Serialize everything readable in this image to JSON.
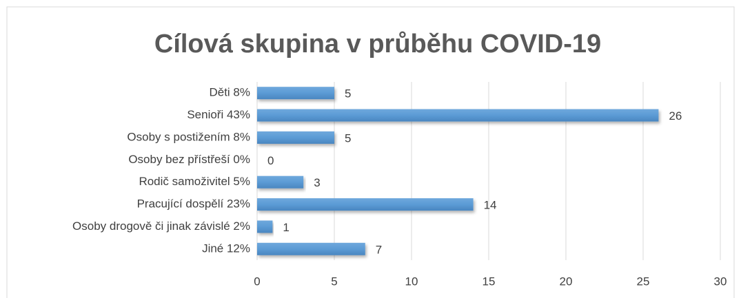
{
  "chart_data": {
    "type": "bar",
    "orientation": "horizontal",
    "title": "Cílová skupina v průběhu COVID-19",
    "categories": [
      "Děti 8%",
      "Senioři 43%",
      "Osoby s postižením 8%",
      "Osoby bez přístřeší 0%",
      "Rodič samoživitel 5%",
      "Pracující dospělí 23%",
      "Osoby drogově či jinak závislé 2%",
      "Jiné 12%"
    ],
    "values": [
      5,
      26,
      5,
      0,
      3,
      14,
      1,
      7
    ],
    "color": "#5b9bd5",
    "xlim": [
      0,
      30
    ],
    "xticks": [
      0,
      5,
      10,
      15,
      20,
      25,
      30
    ],
    "grid": true
  }
}
